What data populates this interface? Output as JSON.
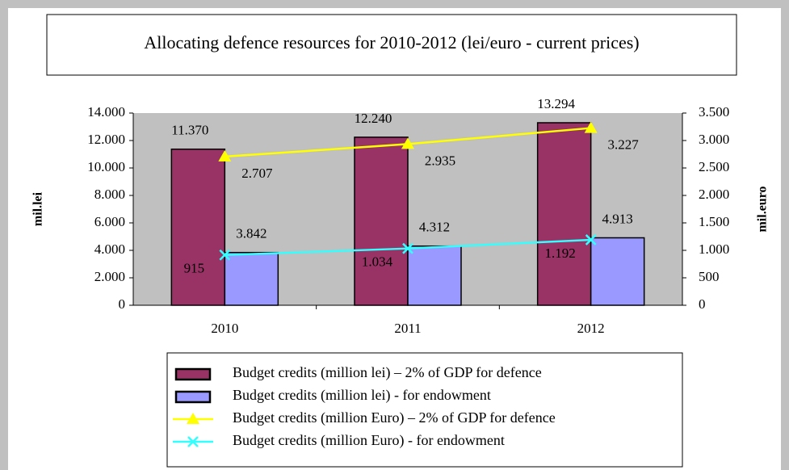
{
  "chart_data": {
    "type": "bar",
    "title": "Allocating defence resources for 2010-2012 (lei/euro - current prices)",
    "categories": [
      "2010",
      "2011",
      "2012"
    ],
    "y_label": "mil.lei",
    "y2_label": "mil.euro",
    "ylim": [
      0,
      14000
    ],
    "yticks": [
      0,
      {
        "value": 2000,
        "label": "2.000"
      },
      {
        "value": 4000,
        "label": "4.000"
      },
      {
        "value": 6000,
        "label": "6.000"
      },
      {
        "value": 8000,
        "label": "8.000"
      },
      {
        "value": 10000,
        "label": "10.000"
      },
      {
        "value": 12000,
        "label": "12.000"
      },
      {
        "value": 14000,
        "label": "14.000"
      }
    ],
    "y2lim": [
      0,
      3500
    ],
    "y2ticks": [
      0,
      500,
      {
        "value": 1000,
        "label": "1.000"
      },
      {
        "value": 1500,
        "label": "1.500"
      },
      {
        "value": 2000,
        "label": "2.000"
      },
      {
        "value": 2500,
        "label": "2.500"
      },
      {
        "value": 3000,
        "label": "3.000"
      },
      {
        "value": 3500,
        "label": "3.500"
      }
    ],
    "legend": "bottom",
    "series": [
      {
        "name": "Budget credits (million lei) – 2% of GDP for defence",
        "type": "bar",
        "color": "#993366",
        "values": [
          11370,
          12240,
          13294
        ],
        "value_labels": [
          "11.370",
          "12.240",
          "13.294"
        ]
      },
      {
        "name": "Budget credits (million lei) - for endowment",
        "type": "bar",
        "color": "#9999ff",
        "values": [
          3842,
          4312,
          4913
        ],
        "value_labels": [
          "3.842",
          "4.312",
          "4.913"
        ]
      },
      {
        "name": "Budget credits (million Euro) – 2% of GDP for defence",
        "type": "line",
        "axis": "y2",
        "marker": "triangle",
        "color": "#ffff00",
        "values": [
          2707,
          2935,
          3227
        ],
        "value_labels": [
          "2.707",
          "2.935",
          "3.227"
        ]
      },
      {
        "name": "Budget credits (million Euro) - for endowment",
        "type": "line",
        "axis": "y2",
        "marker": "x",
        "color": "#33ffff",
        "values": [
          915,
          1034,
          1192
        ],
        "value_labels": [
          "915",
          "1.034",
          "1.192"
        ]
      }
    ]
  }
}
